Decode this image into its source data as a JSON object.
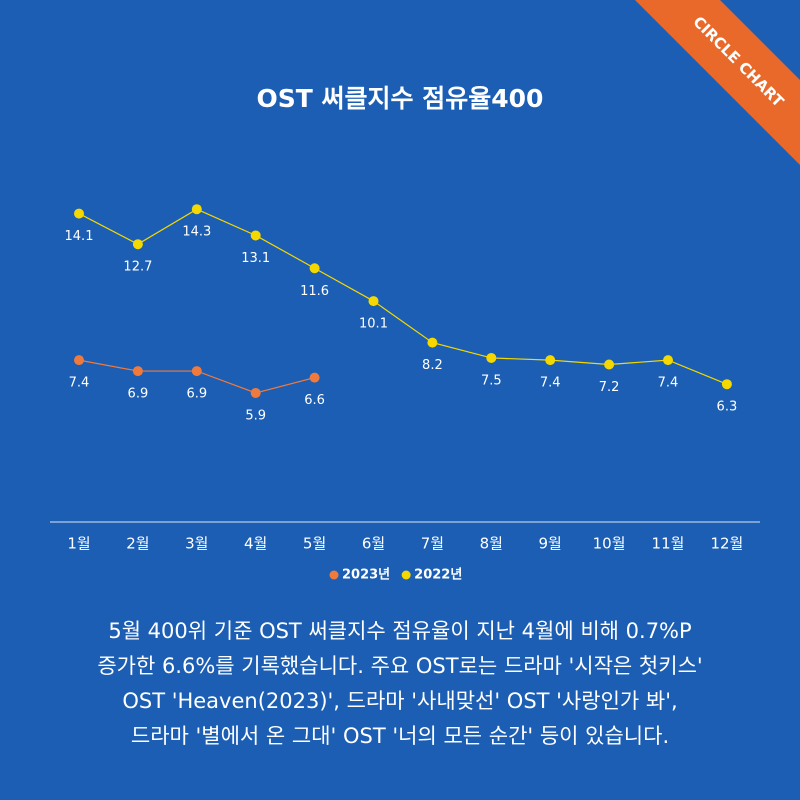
{
  "badge": "CIRCLE CHART",
  "chart_data": {
    "type": "line",
    "title": "OST 써클지수 점유율400",
    "categories": [
      "1월",
      "2월",
      "3월",
      "4월",
      "5월",
      "6월",
      "7월",
      "8월",
      "9월",
      "10월",
      "11월",
      "12월"
    ],
    "series": [
      {
        "name": "2023년",
        "color": "#f07a3c",
        "values": [
          7.4,
          6.9,
          6.9,
          5.9,
          6.6,
          null,
          null,
          null,
          null,
          null,
          null,
          null
        ]
      },
      {
        "name": "2022년",
        "color": "#f5d800",
        "values": [
          14.1,
          12.7,
          14.3,
          13.1,
          11.6,
          10.1,
          8.2,
          7.5,
          7.4,
          7.2,
          7.4,
          6.3
        ]
      }
    ],
    "ylim": [
      0,
      16
    ]
  },
  "paragraph": [
    "5월 400위 기준 OST 써클지수 점유율이 지난 4월에 비해 0.7%P",
    "증가한 6.6%를 기록했습니다. 주요 OST로는 드라마 '시작은 첫키스'",
    "OST 'Heaven(2023)', 드라마 '사내맞선'  OST '사랑인가 봐',",
    "드라마 '별에서 온 그대' OST '너의 모든 순간' 등이 있습니다."
  ]
}
